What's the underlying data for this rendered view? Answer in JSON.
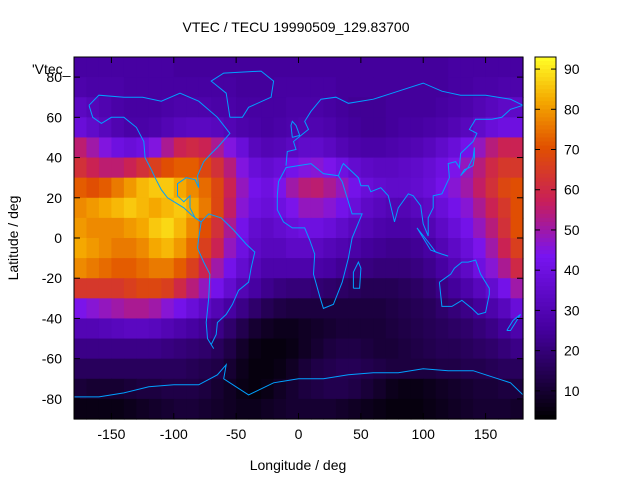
{
  "chart_data": {
    "type": "heatmap",
    "title": "VTEC / TECU 19990509_129.83700",
    "xlabel": "Longitude / deg",
    "ylabel": "Latitude / deg",
    "legend_key": "'Vtec_",
    "xlim": [
      -180,
      180
    ],
    "ylim": [
      -90,
      90
    ],
    "x_ticks": [
      -150,
      -100,
      -50,
      0,
      50,
      100,
      150
    ],
    "y_ticks": [
      -80,
      -60,
      -40,
      -20,
      0,
      20,
      40,
      60,
      80
    ],
    "colorbar": {
      "range": [
        3,
        93
      ],
      "ticks": [
        10,
        20,
        30,
        40,
        50,
        60,
        70,
        80,
        90
      ],
      "palette": "black-purple-red-orange-yellow"
    },
    "grid": false,
    "longitudes": [
      -175,
      -165,
      -155,
      -145,
      -135,
      -125,
      -115,
      -105,
      -95,
      -85,
      -75,
      -65,
      -55,
      -45,
      -35,
      -25,
      -15,
      -5,
      5,
      15,
      25,
      35,
      45,
      55,
      65,
      75,
      85,
      95,
      105,
      115,
      125,
      135,
      145,
      155,
      165,
      175
    ],
    "latitudes": [
      85,
      75,
      65,
      55,
      45,
      35,
      25,
      15,
      5,
      -5,
      -15,
      -25,
      -35,
      -45,
      -55,
      -65,
      -75,
      -85
    ],
    "values": [
      [
        26,
        26,
        26,
        26,
        26,
        26,
        26,
        26,
        25,
        25,
        25,
        25,
        25,
        25,
        25,
        25,
        25,
        25,
        25,
        25,
        25,
        25,
        25,
        25,
        25,
        25,
        25,
        25,
        25,
        25,
        26,
        26,
        26,
        26,
        26,
        26
      ],
      [
        28,
        27,
        27,
        27,
        26,
        26,
        26,
        26,
        26,
        26,
        26,
        26,
        26,
        25,
        25,
        25,
        26,
        26,
        26,
        26,
        26,
        25,
        25,
        25,
        25,
        25,
        25,
        25,
        25,
        25,
        26,
        26,
        27,
        27,
        28,
        28
      ],
      [
        33,
        31,
        29,
        27,
        26,
        26,
        26,
        27,
        28,
        28,
        28,
        27,
        27,
        26,
        26,
        26,
        26,
        27,
        27,
        27,
        26,
        25,
        24,
        24,
        24,
        25,
        25,
        25,
        25,
        26,
        27,
        28,
        30,
        32,
        34,
        34
      ],
      [
        38,
        35,
        32,
        29,
        27,
        27,
        28,
        30,
        32,
        33,
        33,
        32,
        30,
        28,
        27,
        26,
        27,
        28,
        29,
        29,
        28,
        26,
        25,
        24,
        24,
        25,
        26,
        26,
        27,
        28,
        30,
        32,
        35,
        38,
        40,
        40
      ],
      [
        55,
        50,
        45,
        40,
        38,
        40,
        45,
        52,
        58,
        60,
        58,
        52,
        45,
        38,
        32,
        30,
        31,
        33,
        35,
        35,
        33,
        30,
        28,
        27,
        27,
        28,
        29,
        30,
        32,
        35,
        38,
        42,
        48,
        54,
        58,
        58
      ],
      [
        62,
        58,
        55,
        55,
        58,
        62,
        66,
        70,
        72,
        72,
        68,
        62,
        54,
        45,
        38,
        36,
        38,
        42,
        45,
        46,
        44,
        40,
        36,
        34,
        33,
        33,
        34,
        35,
        37,
        40,
        44,
        48,
        54,
        60,
        64,
        64
      ],
      [
        72,
        70,
        72,
        76,
        80,
        84,
        86,
        86,
        82,
        78,
        74,
        68,
        58,
        48,
        42,
        40,
        44,
        50,
        54,
        55,
        52,
        48,
        42,
        38,
        36,
        35,
        35,
        36,
        38,
        42,
        46,
        50,
        56,
        62,
        68,
        70
      ],
      [
        78,
        80,
        82,
        84,
        86,
        84,
        82,
        84,
        86,
        82,
        76,
        68,
        56,
        46,
        40,
        38,
        40,
        44,
        48,
        48,
        46,
        42,
        38,
        34,
        32,
        30,
        30,
        32,
        34,
        38,
        42,
        46,
        52,
        58,
        64,
        70
      ],
      [
        80,
        78,
        78,
        78,
        80,
        82,
        86,
        88,
        84,
        78,
        70,
        62,
        52,
        42,
        36,
        34,
        36,
        38,
        40,
        40,
        38,
        35,
        32,
        30,
        28,
        27,
        27,
        28,
        30,
        34,
        38,
        42,
        48,
        54,
        62,
        70
      ],
      [
        82,
        80,
        78,
        76,
        76,
        78,
        82,
        84,
        80,
        74,
        66,
        58,
        48,
        40,
        34,
        32,
        32,
        34,
        34,
        33,
        31,
        29,
        27,
        25,
        24,
        23,
        23,
        24,
        26,
        30,
        34,
        38,
        44,
        50,
        58,
        66
      ],
      [
        78,
        76,
        74,
        72,
        72,
        74,
        76,
        76,
        72,
        66,
        58,
        50,
        42,
        36,
        31,
        28,
        28,
        28,
        28,
        27,
        26,
        24,
        22,
        21,
        20,
        20,
        20,
        21,
        23,
        26,
        30,
        34,
        40,
        46,
        52,
        60
      ],
      [
        64,
        64,
        64,
        64,
        66,
        68,
        68,
        66,
        60,
        54,
        48,
        42,
        36,
        30,
        26,
        23,
        21,
        20,
        20,
        19,
        18,
        17,
        16,
        15,
        15,
        15,
        16,
        17,
        19,
        22,
        25,
        28,
        32,
        36,
        42,
        50
      ],
      [
        44,
        46,
        48,
        50,
        52,
        52,
        50,
        46,
        42,
        38,
        34,
        30,
        26,
        22,
        18,
        15,
        13,
        12,
        12,
        12,
        12,
        12,
        12,
        12,
        12,
        13,
        14,
        15,
        16,
        18,
        20,
        22,
        25,
        28,
        32,
        38
      ],
      [
        30,
        30,
        31,
        32,
        33,
        33,
        32,
        30,
        28,
        26,
        24,
        22,
        18,
        14,
        10,
        8,
        7,
        7,
        8,
        9,
        10,
        11,
        11,
        11,
        11,
        12,
        13,
        14,
        15,
        16,
        17,
        18,
        20,
        22,
        25,
        28
      ],
      [
        22,
        22,
        22,
        22,
        22,
        22,
        22,
        21,
        20,
        19,
        18,
        16,
        13,
        9,
        6,
        5,
        5,
        6,
        8,
        10,
        12,
        13,
        13,
        12,
        11,
        11,
        12,
        13,
        14,
        15,
        15,
        16,
        17,
        18,
        20,
        22
      ],
      [
        16,
        16,
        16,
        16,
        16,
        16,
        16,
        16,
        16,
        15,
        14,
        13,
        10,
        7,
        5,
        5,
        6,
        8,
        11,
        13,
        14,
        15,
        15,
        14,
        13,
        12,
        12,
        12,
        12,
        13,
        13,
        14,
        14,
        15,
        16,
        16
      ],
      [
        11,
        10,
        10,
        10,
        11,
        12,
        12,
        13,
        13,
        13,
        12,
        10,
        8,
        6,
        5,
        6,
        8,
        10,
        12,
        13,
        14,
        14,
        13,
        11,
        9,
        7,
        6,
        6,
        7,
        8,
        9,
        10,
        11,
        11,
        12,
        12
      ],
      [
        6,
        6,
        6,
        6,
        7,
        8,
        9,
        10,
        11,
        11,
        10,
        9,
        8,
        7,
        7,
        8,
        9,
        10,
        10,
        10,
        10,
        9,
        8,
        7,
        6,
        5,
        5,
        5,
        6,
        7,
        8,
        9,
        10,
        10,
        10,
        9
      ]
    ]
  }
}
